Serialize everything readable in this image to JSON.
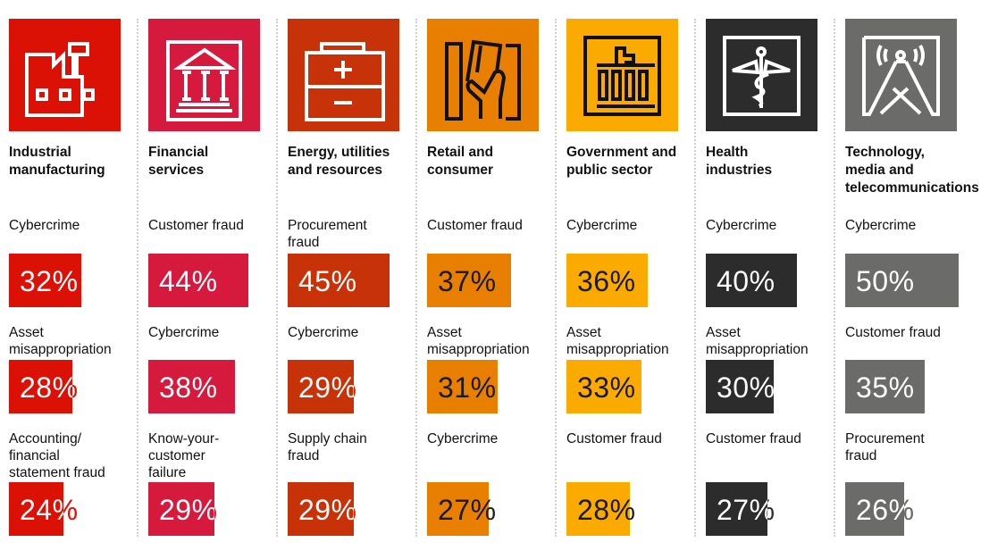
{
  "chart_data": {
    "type": "bar",
    "unit": "%",
    "sectors": [
      {
        "name": "Industrial manufacturing",
        "title_lines": [
          "Industrial",
          "manufacturing"
        ],
        "color": "#dc1106",
        "text_color": "#ffffff",
        "icon": "factory-icon",
        "items": [
          {
            "label": "Cybercrime",
            "value": 32,
            "pct": "32%"
          },
          {
            "label": "Asset misappropriation",
            "value": 28,
            "pct": "28%"
          },
          {
            "label": "Accounting/ financial statement fraud",
            "value": 24,
            "pct": "24%"
          }
        ]
      },
      {
        "name": "Financial services",
        "title_lines": [
          "Financial",
          "services"
        ],
        "color": "#d51a3e",
        "text_color": "#ffffff",
        "icon": "bank-icon",
        "items": [
          {
            "label": "Customer fraud",
            "value": 44,
            "pct": "44%"
          },
          {
            "label": "Cybercrime",
            "value": 38,
            "pct": "38%"
          },
          {
            "label": "Know-your-customer failure",
            "value": 29,
            "pct": "29%"
          }
        ]
      },
      {
        "name": "Energy, utilities and resources",
        "title_lines": [
          "Energy, utilities",
          "and resources"
        ],
        "color": "#c83208",
        "text_color": "#ffffff",
        "icon": "battery-icon",
        "items": [
          {
            "label": "Procurement fraud",
            "value": 45,
            "pct": "45%"
          },
          {
            "label": "Cybercrime",
            "value": 29,
            "pct": "29%"
          },
          {
            "label": "Supply chain fraud",
            "value": 29,
            "pct": "29%"
          }
        ]
      },
      {
        "name": "Retail and consumer",
        "title_lines": [
          "Retail and",
          "consumer"
        ],
        "color": "#e97f00",
        "text_color": "#1a1a1a",
        "icon": "card-in-hand-icon",
        "items": [
          {
            "label": "Customer fraud",
            "value": 37,
            "pct": "37%"
          },
          {
            "label": "Asset misappropriation",
            "value": 31,
            "pct": "31%"
          },
          {
            "label": "Cybercrime",
            "value": 27,
            "pct": "27%"
          }
        ]
      },
      {
        "name": "Government and public sector",
        "title_lines": [
          "Government and",
          "public sector"
        ],
        "color": "#fbaa00",
        "text_color": "#1a1a1a",
        "icon": "government-building-icon",
        "items": [
          {
            "label": "Cybercrime",
            "value": 36,
            "pct": "36%"
          },
          {
            "label": "Asset misappropriation",
            "value": 33,
            "pct": "33%"
          },
          {
            "label": "Customer fraud",
            "value": 28,
            "pct": "28%"
          }
        ]
      },
      {
        "name": "Health industries",
        "title_lines": [
          "Health",
          "industries"
        ],
        "color": "#2b2c2b",
        "text_color": "#ffffff",
        "icon": "caduceus-icon",
        "items": [
          {
            "label": "Cybercrime",
            "value": 40,
            "pct": "40%"
          },
          {
            "label": "Asset misappropriation",
            "value": 30,
            "pct": "30%"
          },
          {
            "label": "Customer fraud",
            "value": 27,
            "pct": "27%"
          }
        ]
      },
      {
        "name": "Technology, media and telecommunications",
        "title_lines": [
          "Technology,",
          "media and",
          "telecommunications"
        ],
        "color": "#6b6b69",
        "text_color": "#ffffff",
        "icon": "antenna-icon",
        "items": [
          {
            "label": "Cybercrime",
            "value": 50,
            "pct": "50%"
          },
          {
            "label": "Customer fraud",
            "value": 35,
            "pct": "35%"
          },
          {
            "label": "Procurement fraud",
            "value": 26,
            "pct": "26%"
          }
        ]
      }
    ]
  }
}
